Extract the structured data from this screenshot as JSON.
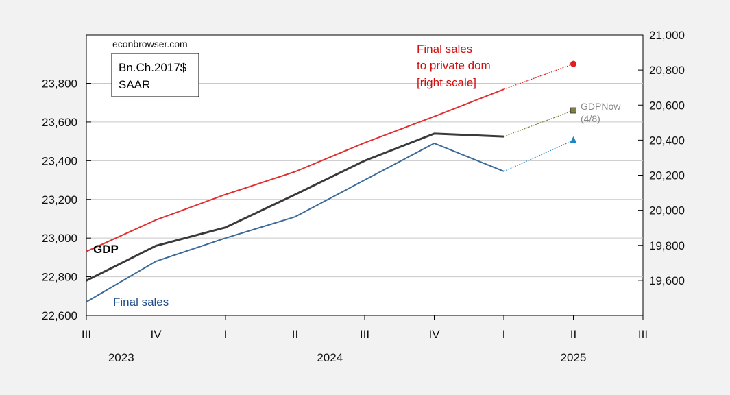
{
  "chart_data": {
    "type": "line",
    "watermark": "econbrowser.com",
    "units_box": [
      "Bn.Ch.2017$",
      "SAAR"
    ],
    "left_axis": {
      "ylim": [
        22600,
        24050
      ],
      "ticks": [
        22600,
        22800,
        23000,
        23200,
        23400,
        23600,
        23800
      ],
      "tick_labels": [
        "22,600",
        "22,800",
        "23,000",
        "23,200",
        "23,400",
        "23,600",
        "23,800"
      ]
    },
    "right_axis": {
      "ylim": [
        19400,
        21000
      ],
      "ticks": [
        19600,
        19800,
        20000,
        20200,
        20400,
        20600,
        20800,
        21000
      ],
      "tick_labels": [
        "19,600",
        "19,800",
        "20,000",
        "20,200",
        "20,400",
        "20,600",
        "20,800",
        "21,000"
      ]
    },
    "x_axis": {
      "quarter_labels": [
        "III",
        "IV",
        "I",
        "II",
        "III",
        "IV",
        "I",
        "II",
        "III"
      ],
      "year_labels": [
        {
          "label": "2023",
          "at": 0.5
        },
        {
          "label": "2024",
          "at": 3.5
        },
        {
          "label": "2025",
          "at": 7.0
        }
      ]
    },
    "series": [
      {
        "name": "GDP",
        "axis": "left",
        "color": "#3a3a3a",
        "x": [
          0,
          1,
          2,
          3,
          4,
          5,
          6
        ],
        "values": [
          22780,
          22960,
          23055,
          23225,
          23400,
          23540,
          23525
        ]
      },
      {
        "name": "Final sales",
        "axis": "left",
        "color": "#3a6a9a",
        "x": [
          0,
          1,
          2,
          3,
          4,
          5,
          6
        ],
        "values": [
          22670,
          22880,
          23000,
          23110,
          23300,
          23490,
          23345
        ]
      },
      {
        "name": "Final sales to private dom [right scale]",
        "axis": "right",
        "color": "#e03030",
        "x": [
          0,
          1,
          2,
          3,
          4,
          5,
          6
        ],
        "values": [
          19765,
          19945,
          20090,
          20220,
          20385,
          20535,
          20690
        ]
      }
    ],
    "nowcasts": [
      {
        "axis": "right",
        "from": [
          6,
          20690
        ],
        "to": [
          7,
          20835
        ],
        "color": "#e02020",
        "marker": "circle"
      },
      {
        "axis": "left",
        "from": [
          6,
          23525
        ],
        "to": [
          7,
          23660
        ],
        "color": "#808040",
        "marker": "square"
      },
      {
        "axis": "left",
        "from": [
          6,
          23345
        ],
        "to": [
          7,
          23505
        ],
        "color": "#1a88c8",
        "marker": "triangle"
      }
    ],
    "annotations": {
      "gdp": "GDP",
      "final_sales": "Final sales",
      "private_dom": [
        "Final sales",
        "to private dom",
        "[right scale]"
      ],
      "gdpnow": [
        "GDPNow",
        "(4/8)"
      ]
    },
    "grid": true
  }
}
